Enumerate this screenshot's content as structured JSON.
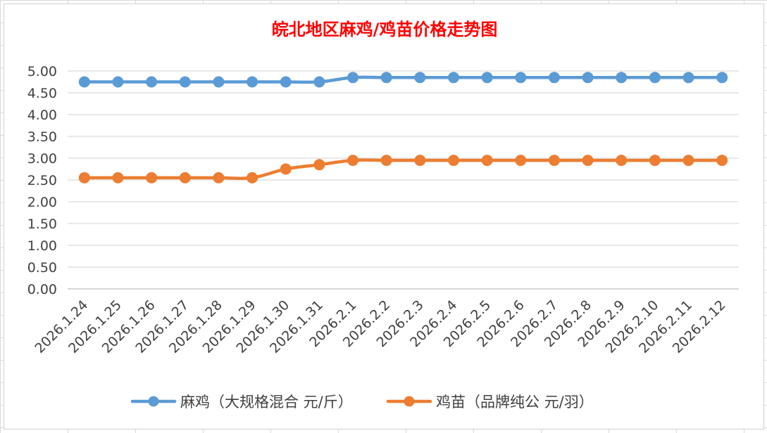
{
  "chart_data": {
    "type": "line",
    "title": "皖北地区麻鸡/鸡苗价格走势图",
    "xlabel": "",
    "ylabel": "",
    "ylim": [
      0,
      5
    ],
    "yticks": [
      "0.00",
      "0.50",
      "1.00",
      "1.50",
      "2.00",
      "2.50",
      "3.00",
      "3.50",
      "4.00",
      "4.50",
      "5.00"
    ],
    "categories": [
      "2026.1.24",
      "2026.1.25",
      "2026.1.26",
      "2026.1.27",
      "2026.1.28",
      "2026.1.29",
      "2026.1.30",
      "2026.1.31",
      "2026.2.1",
      "2026.2.2",
      "2026.2.3",
      "2026.2.4",
      "2026.2.5",
      "2026.2.6",
      "2026.2.7",
      "2026.2.8",
      "2026.2.9",
      "2026.2.10",
      "2026.2.11",
      "2026.2.12"
    ],
    "series": [
      {
        "name": "麻鸡（大规格混合 元/斤）",
        "color": "#5b9bd5",
        "values": [
          4.75,
          4.75,
          4.75,
          4.75,
          4.75,
          4.75,
          4.75,
          4.75,
          4.85,
          4.85,
          4.85,
          4.85,
          4.85,
          4.85,
          4.85,
          4.85,
          4.85,
          4.85,
          4.85,
          4.85
        ]
      },
      {
        "name": "鸡苗（品牌纯公 元/羽）",
        "color": "#ed7d31",
        "values": [
          2.55,
          2.55,
          2.55,
          2.55,
          2.55,
          2.55,
          2.75,
          2.85,
          2.95,
          2.95,
          2.95,
          2.95,
          2.95,
          2.95,
          2.95,
          2.95,
          2.95,
          2.95,
          2.95,
          2.95
        ]
      }
    ],
    "grid": true,
    "legend_position": "bottom"
  }
}
